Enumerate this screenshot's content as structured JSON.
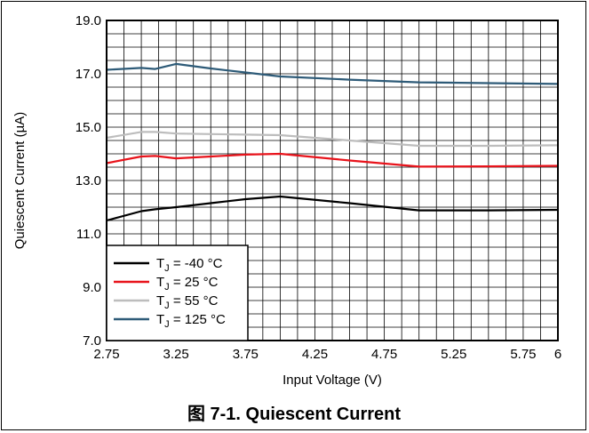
{
  "chart_data": {
    "type": "line",
    "title": "",
    "xlabel": "Input Voltage (V)",
    "ylabel": "Quiescent Current (µA)",
    "xlim": [
      2.75,
      6
    ],
    "ylim": [
      7.0,
      19.0
    ],
    "x_ticks": [
      "2.75",
      "3.25",
      "3.75",
      "4.25",
      "4.75",
      "5.25",
      "5.75",
      "6"
    ],
    "x_tick_values": [
      2.75,
      3.25,
      3.75,
      4.25,
      4.75,
      5.25,
      5.75,
      6
    ],
    "y_ticks": [
      "7.0",
      "9.0",
      "11.0",
      "13.0",
      "15.0",
      "17.0",
      "19.0"
    ],
    "y_tick_values": [
      7,
      9,
      11,
      13,
      15,
      17,
      19
    ],
    "grid": true,
    "legend_position": "bottom-left",
    "series": [
      {
        "name_main": "T",
        "name_sub": "J",
        "name_rest": " = -40 °C",
        "color": "#000000",
        "x": [
          2.75,
          3.0,
          3.1,
          3.25,
          3.5,
          3.75,
          4.0,
          4.5,
          5.0,
          5.5,
          6.0
        ],
        "y": [
          11.5,
          11.85,
          11.92,
          12.0,
          12.15,
          12.3,
          12.4,
          12.15,
          11.88,
          11.88,
          11.9
        ]
      },
      {
        "name_main": "T",
        "name_sub": "J",
        "name_rest": " = 25 °C",
        "color": "#e8131b",
        "x": [
          2.75,
          3.0,
          3.1,
          3.25,
          3.5,
          3.75,
          4.0,
          4.5,
          5.0,
          5.5,
          6.0
        ],
        "y": [
          13.65,
          13.9,
          13.92,
          13.83,
          13.9,
          13.97,
          14.0,
          13.75,
          13.52,
          13.53,
          13.55
        ]
      },
      {
        "name_main": "T",
        "name_sub": "J",
        "name_rest": " = 55 °C",
        "color": "#bdbdbd",
        "x": [
          2.75,
          3.0,
          3.1,
          3.25,
          3.5,
          3.75,
          4.0,
          4.5,
          5.0,
          5.5,
          6.0
        ],
        "y": [
          14.6,
          14.82,
          14.82,
          14.76,
          14.74,
          14.72,
          14.7,
          14.5,
          14.3,
          14.3,
          14.32
        ]
      },
      {
        "name_main": "T",
        "name_sub": "J",
        "name_rest": " = 125 °C",
        "color": "#2e5b78",
        "x": [
          2.75,
          3.0,
          3.1,
          3.25,
          3.5,
          3.75,
          4.0,
          4.5,
          5.0,
          5.5,
          6.0
        ],
        "y": [
          17.15,
          17.22,
          17.18,
          17.37,
          17.2,
          17.05,
          16.9,
          16.78,
          16.68,
          16.65,
          16.62
        ]
      }
    ]
  },
  "caption": "图 7-1. Quiescent Current"
}
